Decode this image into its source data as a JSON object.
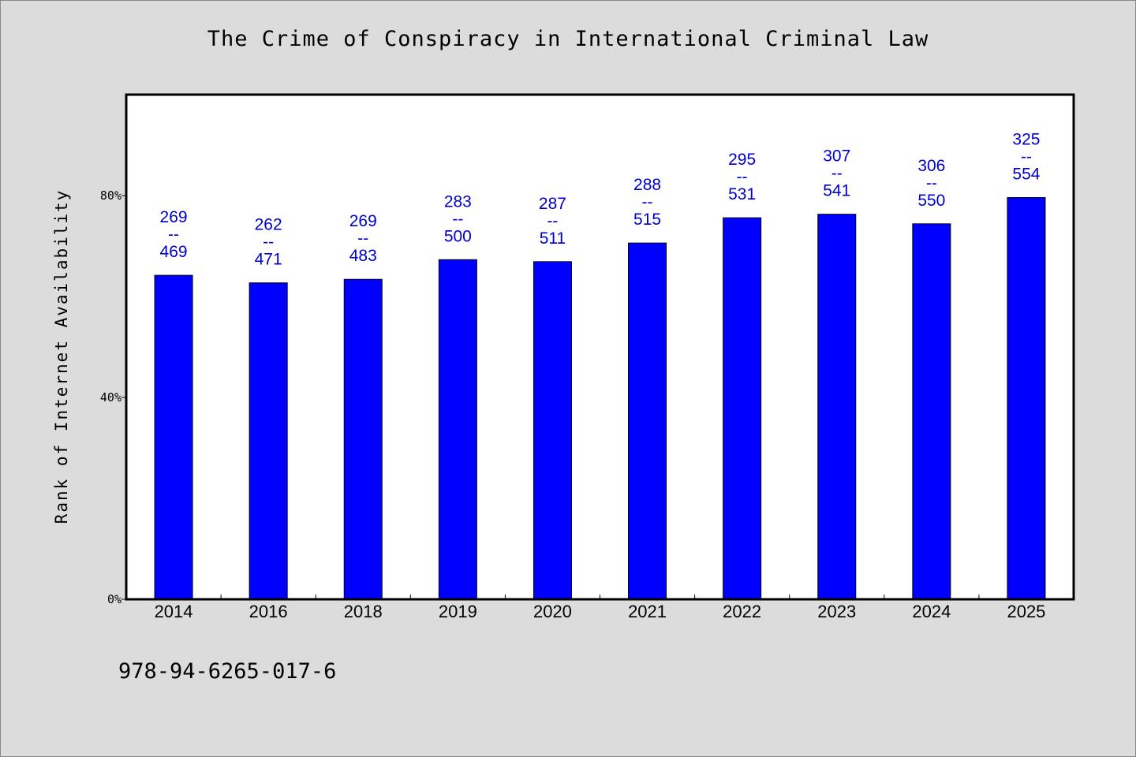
{
  "chart_data": {
    "type": "bar",
    "title": "The Crime of Conspiracy in International Criminal Law",
    "ylabel": "Rank of Internet Availability",
    "xlabel": "",
    "ylim": [
      0,
      100
    ],
    "yticks": [
      {
        "value": 0,
        "label": "0%"
      },
      {
        "value": 40,
        "label": "40%"
      },
      {
        "value": 80,
        "label": "80%"
      }
    ],
    "categories": [
      "2014",
      "2016",
      "2018",
      "2019",
      "2020",
      "2021",
      "2022",
      "2023",
      "2024",
      "2025"
    ],
    "values": [
      64.2,
      62.7,
      63.4,
      67.3,
      66.9,
      70.6,
      75.6,
      76.3,
      74.4,
      79.6
    ],
    "data_labels": [
      [
        "269",
        "--",
        "469"
      ],
      [
        "262",
        "--",
        "471"
      ],
      [
        "269",
        "--",
        "483"
      ],
      [
        "283",
        "--",
        "500"
      ],
      [
        "287",
        "--",
        "511"
      ],
      [
        "288",
        "--",
        "515"
      ],
      [
        "295",
        "--",
        "531"
      ],
      [
        "307",
        "--",
        "541"
      ],
      [
        "306",
        "--",
        "550"
      ],
      [
        "325",
        "--",
        "554"
      ]
    ],
    "bar_color": "#0000ff",
    "label_color": "#0000cc",
    "plot_background": "#ffffff",
    "page_background": "#dcdcdc",
    "grid": false,
    "legend": "none"
  },
  "footer": {
    "isbn": "978-94-6265-017-6"
  }
}
